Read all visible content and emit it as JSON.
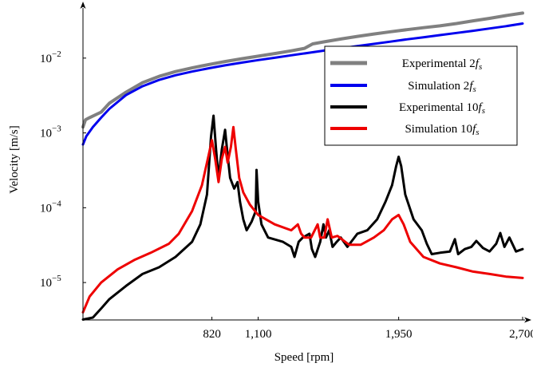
{
  "chart_data": {
    "type": "line",
    "xlabel": "Speed [rpm]",
    "ylabel": "Velocity [m/s]",
    "xlim": [
      40,
      2700
    ],
    "ylim_log10": [
      -5.5,
      -1.33
    ],
    "y_scale": "log",
    "x_ticks": [
      {
        "value": 820,
        "label": "820"
      },
      {
        "value": 1100,
        "label": "1,100"
      },
      {
        "value": 1950,
        "label": "1,950"
      },
      {
        "value": 2700,
        "label": "2,700"
      }
    ],
    "y_ticks": [
      {
        "value": 1e-05,
        "base": "10",
        "exp": "−5"
      },
      {
        "value": 0.0001,
        "base": "10",
        "exp": "−4"
      },
      {
        "value": 0.001,
        "base": "10",
        "exp": "−3"
      },
      {
        "value": 0.01,
        "base": "10",
        "exp": "−2"
      }
    ],
    "grid": false,
    "legend_position": "upper-right",
    "series": [
      {
        "name": "Experimental 2",
        "name_sym": "f",
        "name_sub": "s",
        "color": "#808080",
        "width": 4,
        "points": [
          [
            40,
            0.0012
          ],
          [
            55,
            0.0015
          ],
          [
            80,
            0.0016
          ],
          [
            150,
            0.0019
          ],
          [
            200,
            0.0025
          ],
          [
            300,
            0.0035
          ],
          [
            400,
            0.0047
          ],
          [
            500,
            0.0057
          ],
          [
            600,
            0.0066
          ],
          [
            700,
            0.0074
          ],
          [
            800,
            0.0082
          ],
          [
            900,
            0.009
          ],
          [
            1000,
            0.0098
          ],
          [
            1100,
            0.0106
          ],
          [
            1200,
            0.0115
          ],
          [
            1300,
            0.0125
          ],
          [
            1380,
            0.0135
          ],
          [
            1430,
            0.0155
          ],
          [
            1500,
            0.0165
          ],
          [
            1600,
            0.018
          ],
          [
            1700,
            0.0195
          ],
          [
            1800,
            0.021
          ],
          [
            1900,
            0.0225
          ],
          [
            2000,
            0.024
          ],
          [
            2100,
            0.0255
          ],
          [
            2200,
            0.027
          ],
          [
            2300,
            0.029
          ],
          [
            2400,
            0.0315
          ],
          [
            2500,
            0.034
          ],
          [
            2600,
            0.037
          ],
          [
            2700,
            0.04
          ]
        ]
      },
      {
        "name": "Simulation 2",
        "name_sym": "f",
        "name_sub": "s",
        "color": "#0000ee",
        "width": 3,
        "points": [
          [
            40,
            0.0007
          ],
          [
            60,
            0.0009
          ],
          [
            100,
            0.0012
          ],
          [
            150,
            0.0016
          ],
          [
            200,
            0.0021
          ],
          [
            300,
            0.0032
          ],
          [
            400,
            0.0042
          ],
          [
            500,
            0.0051
          ],
          [
            600,
            0.0059
          ],
          [
            700,
            0.0066
          ],
          [
            800,
            0.0073
          ],
          [
            900,
            0.008
          ],
          [
            1000,
            0.0087
          ],
          [
            1100,
            0.0094
          ],
          [
            1200,
            0.0101
          ],
          [
            1300,
            0.0109
          ],
          [
            1400,
            0.0117
          ],
          [
            1500,
            0.0126
          ],
          [
            1600,
            0.0135
          ],
          [
            1700,
            0.0145
          ],
          [
            1800,
            0.0155
          ],
          [
            1900,
            0.0166
          ],
          [
            2000,
            0.0178
          ],
          [
            2100,
            0.019
          ],
          [
            2200,
            0.0203
          ],
          [
            2300,
            0.0217
          ],
          [
            2400,
            0.0232
          ],
          [
            2500,
            0.0249
          ],
          [
            2600,
            0.0267
          ],
          [
            2700,
            0.029
          ]
        ]
      },
      {
        "name": "Experimental 10",
        "name_sym": "f",
        "name_sub": "s",
        "color": "#000000",
        "width": 3,
        "points": [
          [
            40,
            3.2e-06
          ],
          [
            100,
            3.4e-06
          ],
          [
            150,
            4.5e-06
          ],
          [
            200,
            6e-06
          ],
          [
            300,
            9e-06
          ],
          [
            400,
            1.3e-05
          ],
          [
            500,
            1.6e-05
          ],
          [
            600,
            2.2e-05
          ],
          [
            700,
            3.5e-05
          ],
          [
            750,
            6e-05
          ],
          [
            790,
            0.00015
          ],
          [
            815,
            0.0009
          ],
          [
            830,
            0.0017
          ],
          [
            845,
            0.0006
          ],
          [
            860,
            0.00025
          ],
          [
            880,
            0.0006
          ],
          [
            900,
            0.0011
          ],
          [
            915,
            0.0005
          ],
          [
            930,
            0.00025
          ],
          [
            955,
            0.00018
          ],
          [
            975,
            0.00022
          ],
          [
            990,
            0.00012
          ],
          [
            1010,
            7e-05
          ],
          [
            1030,
            5e-05
          ],
          [
            1060,
            6.5e-05
          ],
          [
            1085,
            9e-05
          ],
          [
            1090,
            0.00032
          ],
          [
            1100,
            0.00012
          ],
          [
            1120,
            6e-05
          ],
          [
            1160,
            4e-05
          ],
          [
            1250,
            3.5e-05
          ],
          [
            1300,
            3e-05
          ],
          [
            1320,
            2.2e-05
          ],
          [
            1345,
            3.5e-05
          ],
          [
            1370,
            4e-05
          ],
          [
            1410,
            4.5e-05
          ],
          [
            1425,
            2.8e-05
          ],
          [
            1445,
            2.2e-05
          ],
          [
            1475,
            3.5e-05
          ],
          [
            1495,
            6e-05
          ],
          [
            1510,
            4e-05
          ],
          [
            1530,
            5e-05
          ],
          [
            1550,
            3e-05
          ],
          [
            1575,
            3.5e-05
          ],
          [
            1600,
            4e-05
          ],
          [
            1640,
            3e-05
          ],
          [
            1700,
            4.5e-05
          ],
          [
            1760,
            5e-05
          ],
          [
            1820,
            7e-05
          ],
          [
            1870,
            0.00012
          ],
          [
            1910,
            0.0002
          ],
          [
            1935,
            0.00036
          ],
          [
            1950,
            0.00048
          ],
          [
            1965,
            0.00036
          ],
          [
            1990,
            0.00015
          ],
          [
            2040,
            7e-05
          ],
          [
            2090,
            5e-05
          ],
          [
            2120,
            3.3e-05
          ],
          [
            2150,
            2.4e-05
          ],
          [
            2200,
            2.5e-05
          ],
          [
            2260,
            2.6e-05
          ],
          [
            2290,
            3.8e-05
          ],
          [
            2310,
            2.4e-05
          ],
          [
            2350,
            2.8e-05
          ],
          [
            2390,
            3e-05
          ],
          [
            2420,
            3.6e-05
          ],
          [
            2460,
            2.9e-05
          ],
          [
            2500,
            2.6e-05
          ],
          [
            2540,
            3.3e-05
          ],
          [
            2565,
            4.6e-05
          ],
          [
            2590,
            3e-05
          ],
          [
            2620,
            4e-05
          ],
          [
            2660,
            2.6e-05
          ],
          [
            2700,
            2.8e-05
          ]
        ]
      },
      {
        "name": "Simulation 10",
        "name_sym": "f",
        "name_sub": "s",
        "color": "#ee0000",
        "width": 3,
        "points": [
          [
            40,
            4e-06
          ],
          [
            80,
            6.5e-06
          ],
          [
            150,
            1e-05
          ],
          [
            250,
            1.5e-05
          ],
          [
            350,
            2e-05
          ],
          [
            450,
            2.5e-05
          ],
          [
            560,
            3.3e-05
          ],
          [
            620,
            4.5e-05
          ],
          [
            700,
            9e-05
          ],
          [
            760,
            0.0002
          ],
          [
            800,
            0.0005
          ],
          [
            820,
            0.0008
          ],
          [
            840,
            0.00045
          ],
          [
            860,
            0.00022
          ],
          [
            880,
            0.00045
          ],
          [
            900,
            0.00065
          ],
          [
            915,
            0.0004
          ],
          [
            935,
            0.00065
          ],
          [
            950,
            0.0012
          ],
          [
            965,
            0.0006
          ],
          [
            985,
            0.00025
          ],
          [
            1010,
            0.00016
          ],
          [
            1050,
            0.00011
          ],
          [
            1100,
            8e-05
          ],
          [
            1200,
            6e-05
          ],
          [
            1300,
            5e-05
          ],
          [
            1340,
            6e-05
          ],
          [
            1360,
            4.5e-05
          ],
          [
            1380,
            4e-05
          ],
          [
            1420,
            4e-05
          ],
          [
            1460,
            6e-05
          ],
          [
            1475,
            4e-05
          ],
          [
            1500,
            4e-05
          ],
          [
            1520,
            7e-05
          ],
          [
            1545,
            4e-05
          ],
          [
            1580,
            4.2e-05
          ],
          [
            1650,
            3.2e-05
          ],
          [
            1720,
            3.2e-05
          ],
          [
            1800,
            4e-05
          ],
          [
            1860,
            5e-05
          ],
          [
            1910,
            7e-05
          ],
          [
            1950,
            8e-05
          ],
          [
            1980,
            6e-05
          ],
          [
            2020,
            3.5e-05
          ],
          [
            2100,
            2.2e-05
          ],
          [
            2200,
            1.8e-05
          ],
          [
            2300,
            1.6e-05
          ],
          [
            2400,
            1.4e-05
          ],
          [
            2500,
            1.3e-05
          ],
          [
            2600,
            1.2e-05
          ],
          [
            2700,
            1.15e-05
          ]
        ]
      }
    ]
  }
}
